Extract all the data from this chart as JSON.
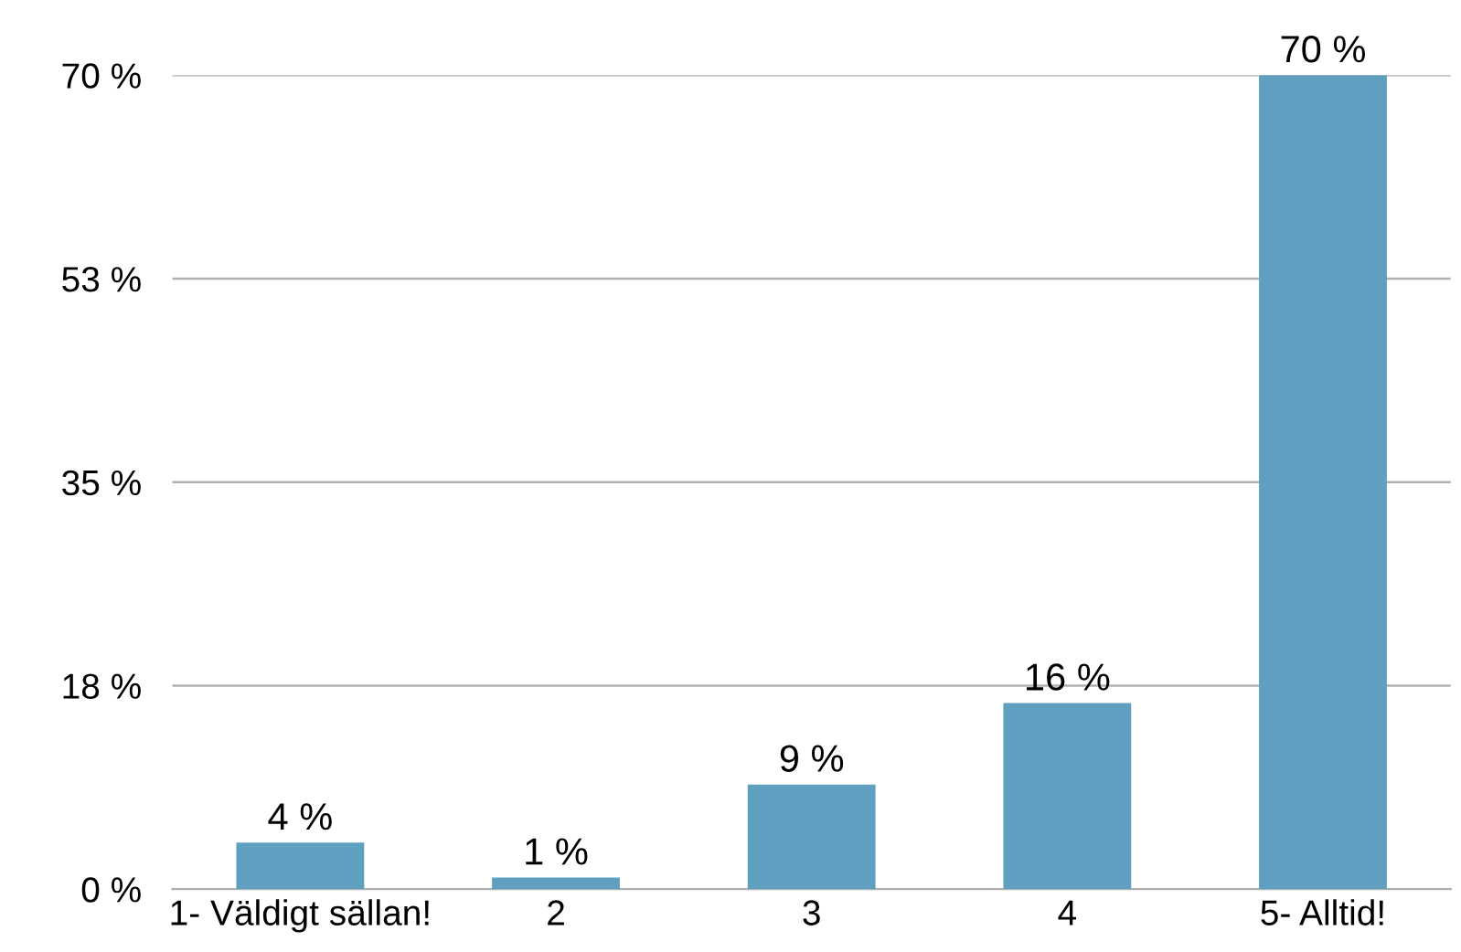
{
  "chart_data": {
    "type": "bar",
    "categories": [
      "1- Väldigt sällan!",
      "2",
      "3",
      "4",
      "5- Alltid!"
    ],
    "values": [
      4,
      1,
      9,
      16,
      70
    ],
    "value_labels": [
      "4 %",
      "1 %",
      "9 %",
      "16 %",
      "70 %"
    ],
    "color": "#5f9fc0",
    "ylim": [
      0,
      70
    ],
    "yticks": [
      {
        "value": 0,
        "label": "0 %"
      },
      {
        "value": 17.5,
        "label": "18 %"
      },
      {
        "value": 35,
        "label": "35 %"
      },
      {
        "value": 52.5,
        "label": "53 %"
      },
      {
        "value": 70,
        "label": "70 %"
      }
    ],
    "grid": "y"
  }
}
